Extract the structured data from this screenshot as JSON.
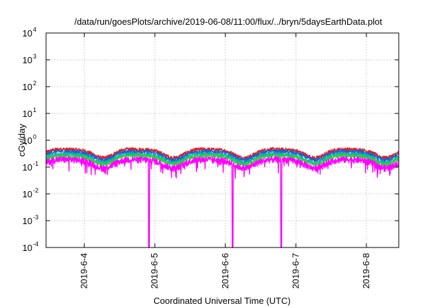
{
  "chart_data": {
    "type": "line",
    "title": "/data/run/goesPlots/archive/2019-06-08/11:00/flux/../bryn/5daysEarthData.plot",
    "xlabel": "Coordinated Universal Time (UTC)",
    "ylabel": "cGy/day",
    "yscale": "log",
    "ylim": [
      0.0001,
      10000
    ],
    "y_ticks": [
      {
        "base": "10",
        "exp": "-4",
        "value": 0.0001
      },
      {
        "base": "10",
        "exp": "-3",
        "value": 0.001
      },
      {
        "base": "10",
        "exp": "-2",
        "value": 0.01
      },
      {
        "base": "10",
        "exp": "-1",
        "value": 0.1
      },
      {
        "base": "10",
        "exp": "0",
        "value": 1
      },
      {
        "base": "10",
        "exp": "1",
        "value": 10
      },
      {
        "base": "10",
        "exp": "2",
        "value": 100
      },
      {
        "base": "10",
        "exp": "3",
        "value": 1000
      },
      {
        "base": "10",
        "exp": "4",
        "value": 10000
      }
    ],
    "xlim": [
      "2019-06-03T11:00",
      "2019-06-08T11:00"
    ],
    "x_ticks": [
      {
        "label": "2019-6-4",
        "value": "2019-06-04T00:00"
      },
      {
        "label": "2019-6-5",
        "value": "2019-06-05T00:00"
      },
      {
        "label": "2019-6-6",
        "value": "2019-06-06T00:00"
      },
      {
        "label": "2019-6-7",
        "value": "2019-06-07T00:00"
      },
      {
        "label": "2019-6-8",
        "value": "2019-06-08T00:00"
      }
    ],
    "grid": true,
    "legend": "none",
    "series": [
      {
        "color": "#e41a1c",
        "level": 0.36
      },
      {
        "color": "#1f5fd6",
        "level": 0.3
      },
      {
        "color": "#00b0b0",
        "level": 0.24
      },
      {
        "color": "#2ecc40",
        "level": 0.21
      },
      {
        "color": "#ff00ff",
        "level": 0.15,
        "dropouts": [
          "2019-06-04T22:00",
          "2019-06-06T02:30",
          "2019-06-06T19:00"
        ]
      }
    ]
  }
}
